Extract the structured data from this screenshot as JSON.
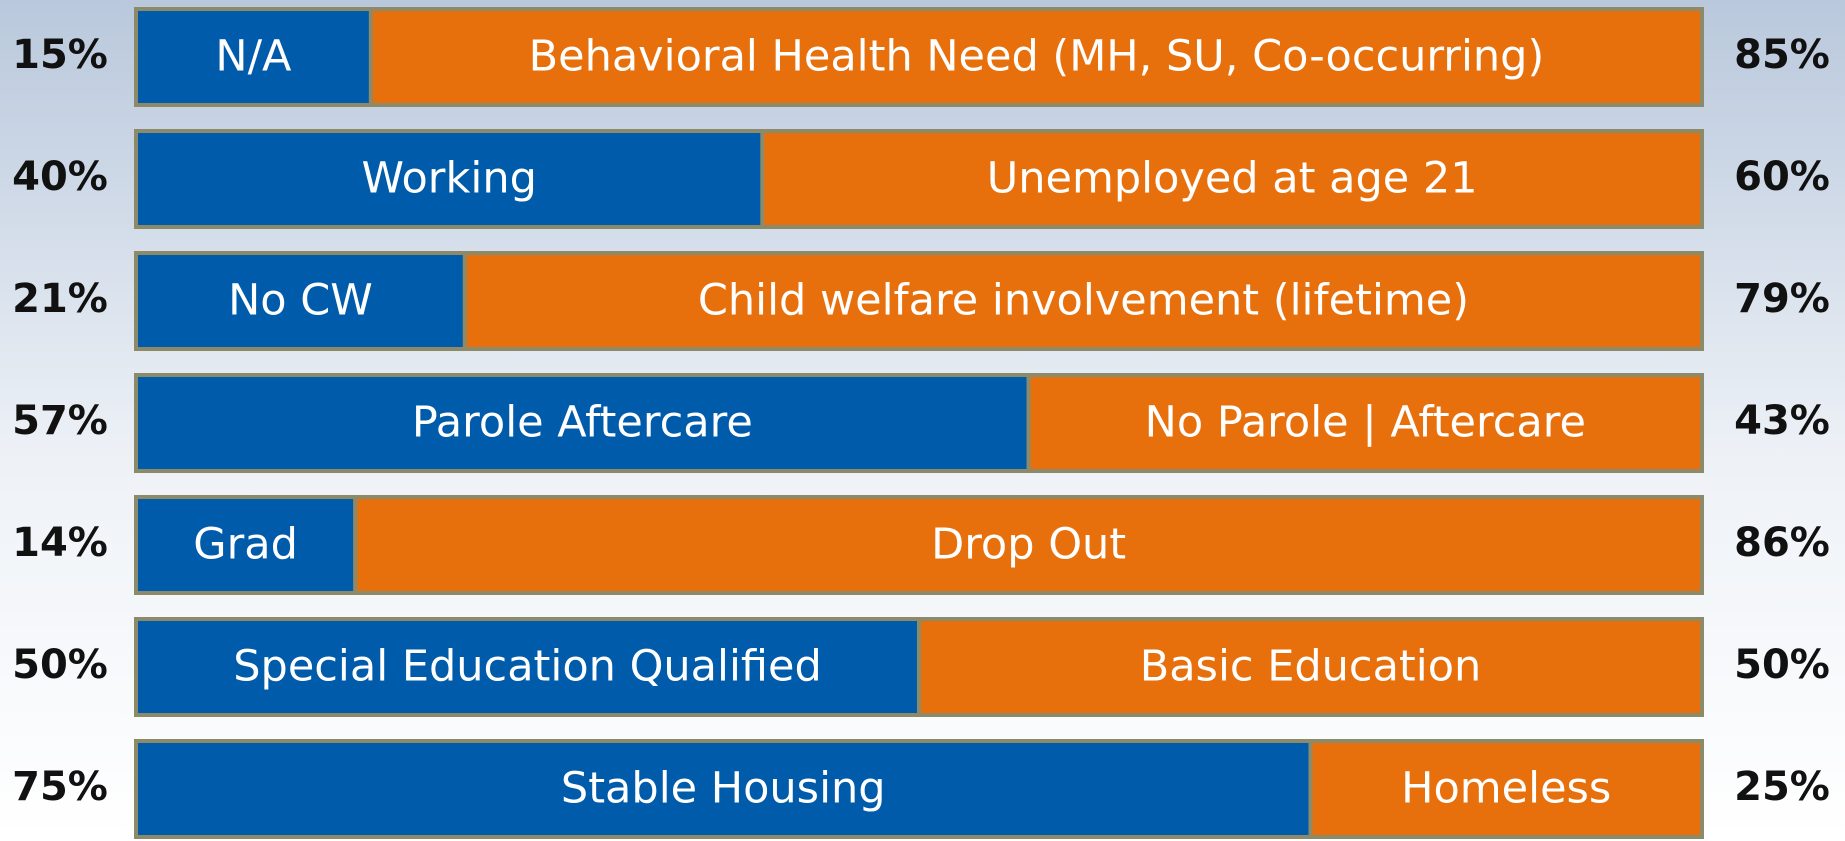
{
  "chart_data": {
    "type": "bar",
    "orientation": "horizontal",
    "stacked": true,
    "xlim": [
      0,
      100
    ],
    "series": [
      {
        "color": "#005bab",
        "labels": [
          "N/A",
          "Working",
          "No CW",
          "Parole Aftercare",
          "Grad",
          "Special Education Qualified",
          "Stable Housing"
        ],
        "values": [
          15,
          40,
          21,
          57,
          14,
          50,
          75
        ],
        "value_labels": [
          "15%",
          "40%",
          "21%",
          "57%",
          "14%",
          "50%",
          "75%"
        ]
      },
      {
        "color": "#e8700c",
        "labels": [
          "Behavioral Health Need (MH, SU, Co-occurring)",
          "Unemployed at age 21",
          "Child welfare involvement (lifetime)",
          "No Parole | Aftercare",
          "Drop Out",
          "Basic Education",
          "Homeless"
        ],
        "values": [
          85,
          60,
          79,
          43,
          86,
          50,
          25
        ],
        "value_labels": [
          "85%",
          "60%",
          "79%",
          "43%",
          "86%",
          "50%",
          "25%"
        ]
      }
    ]
  }
}
